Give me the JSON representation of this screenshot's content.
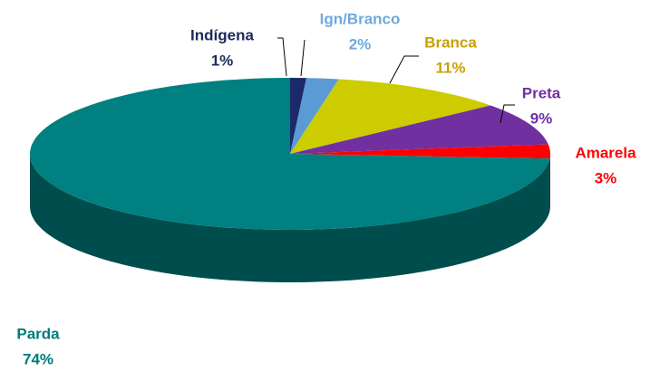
{
  "chart_data": {
    "type": "pie",
    "categories": [
      "Indígena",
      "Ign/Branco",
      "Branca",
      "Preta",
      "Amarela",
      "Parda"
    ],
    "values": [
      1,
      2,
      11,
      9,
      3,
      74
    ],
    "value_labels": [
      "1%",
      "2%",
      "11%",
      "9%",
      "3%",
      "74%"
    ],
    "colors": [
      "#1b2a6b",
      "#5b9bd5",
      "#cccc00",
      "#7030a0",
      "#ff0000",
      "#008080"
    ],
    "label_colors": [
      "#1b2a5a",
      "#6fa8dc",
      "#c9a000",
      "#7030a0",
      "#ff0000",
      "#007b7b"
    ]
  }
}
